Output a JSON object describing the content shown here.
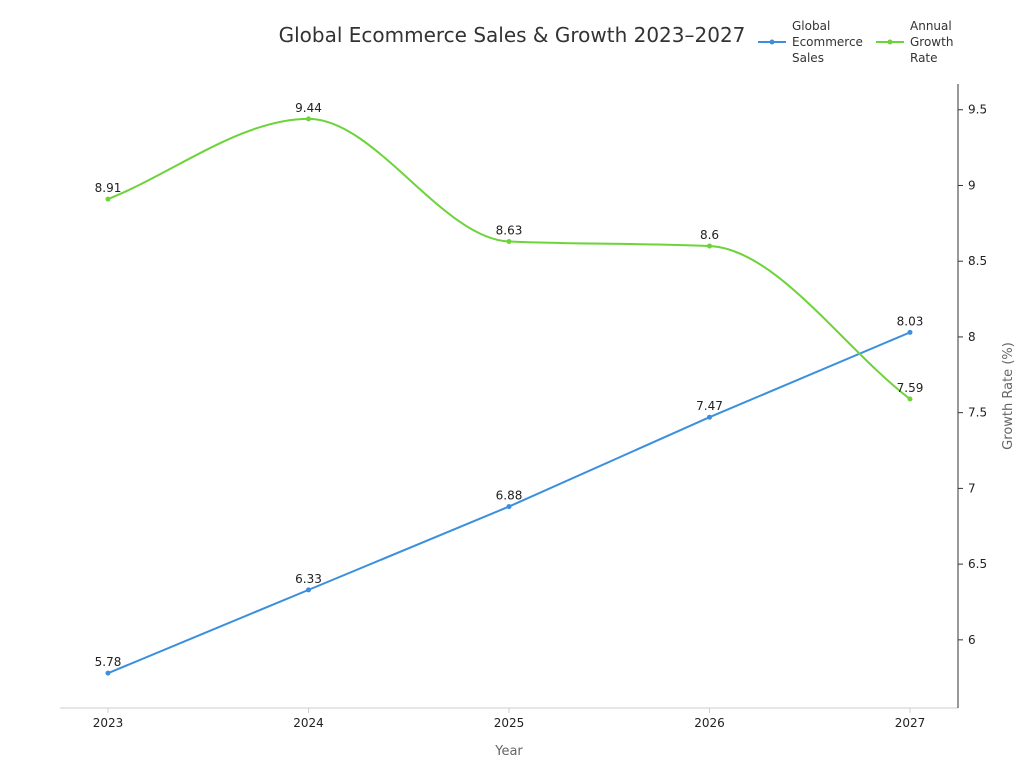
{
  "chart_data": {
    "type": "line",
    "title": "Global Ecommerce Sales & Growth 2023–2027",
    "xlabel": "Year",
    "ylabel_right": "Growth Rate (%)",
    "categories": [
      "2023",
      "2024",
      "2025",
      "2026",
      "2027"
    ],
    "yaxis_right": {
      "range": [
        5.55,
        9.67
      ],
      "ticks": [
        "6",
        "6.5",
        "7",
        "7.5",
        "8",
        "8.5",
        "9",
        "9.5"
      ]
    },
    "grid": false,
    "legend_position": "top-right",
    "series": [
      {
        "name": "Global Ecommerce Sales",
        "legend_lines": [
          "Global",
          "Ecommerce",
          "Sales"
        ],
        "values": [
          5.78,
          6.33,
          6.88,
          7.47,
          8.03
        ],
        "labels": [
          "5.78",
          "6.33",
          "6.88",
          "7.47",
          "8.03"
        ],
        "color": "#3b8fdd",
        "curve": "straight"
      },
      {
        "name": "Annual Growth Rate",
        "legend_lines": [
          "Annual",
          "Growth",
          "Rate"
        ],
        "values": [
          8.91,
          9.44,
          8.63,
          8.6,
          7.59
        ],
        "labels": [
          "8.91",
          "9.44",
          "8.63",
          "8.6",
          "7.59"
        ],
        "color": "#6cd43a",
        "curve": "smooth"
      }
    ]
  }
}
